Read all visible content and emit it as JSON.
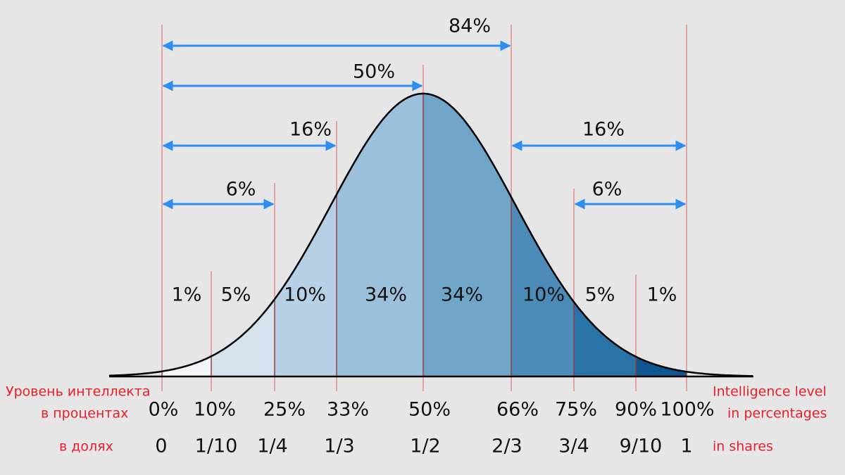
{
  "segments": [
    "1%",
    "5%",
    "10%",
    "34%",
    "34%",
    "10%",
    "5%",
    "1%"
  ],
  "arrows": [
    "84%",
    "50%",
    "16%",
    "6%",
    "16%",
    "6%"
  ],
  "left_labels": {
    "level_line1": "Уровень интеллекта",
    "level_line2": "в процентах",
    "shares": "в долях"
  },
  "right_labels": {
    "level_line1": "Intelligence level",
    "level_line2": "in percentages",
    "shares": "in shares"
  },
  "percent_ticks": [
    "0%",
    "10%",
    "25%",
    "33%",
    "50%",
    "66%",
    "75%",
    "90%",
    "100%"
  ],
  "share_ticks": [
    "0",
    "1/10",
    "1/4",
    "1/3",
    "1/2",
    "2/3",
    "3/4",
    "9/10",
    "1"
  ]
}
